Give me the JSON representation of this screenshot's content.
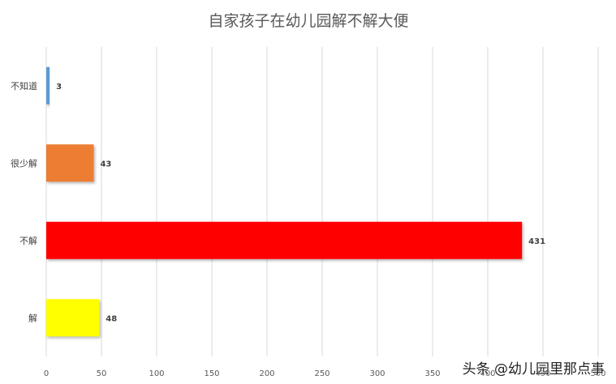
{
  "watermark": "头条 @幼儿园里那点事",
  "chart_data": {
    "type": "bar",
    "orientation": "horizontal",
    "title": "自家孩子在幼儿园解不解大便",
    "xlabel": "",
    "ylabel": "",
    "categories": [
      "不知道",
      "很少解",
      "不解",
      "解"
    ],
    "values": [
      3,
      43,
      431,
      48
    ],
    "colors": [
      "#5b9bd5",
      "#ed7d31",
      "#ff0000",
      "#ffff00"
    ],
    "xlim": [
      0,
      500
    ],
    "xticks": [
      0,
      50,
      100,
      150,
      200,
      250,
      300,
      350,
      400,
      450,
      500
    ],
    "grid": true,
    "legend": "none"
  }
}
